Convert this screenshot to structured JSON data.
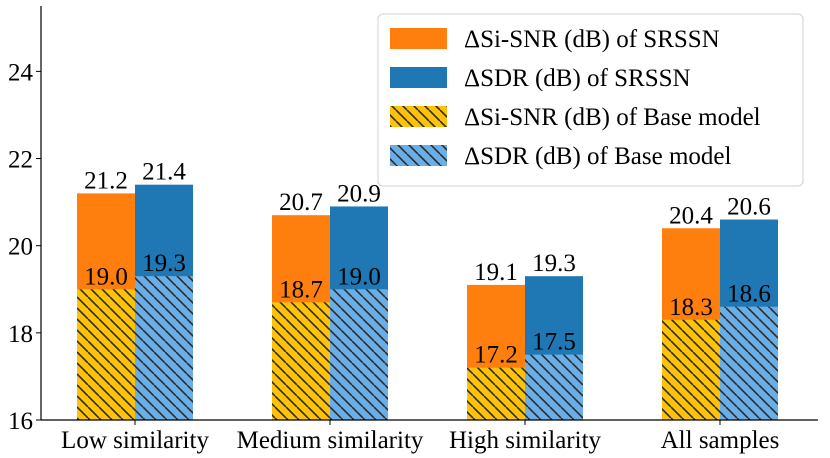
{
  "chart_data": {
    "type": "bar",
    "title": "",
    "xlabel": "",
    "ylabel": "",
    "ylim": [
      16,
      25.5
    ],
    "yticks": [
      "16",
      "18",
      "20",
      "22",
      "24"
    ],
    "categories": [
      "Low similarity",
      "Medium similarity",
      "High similarity",
      "All samples"
    ],
    "series": [
      {
        "name": "ΔSi-SNR (dB) of SRSSN",
        "values": [
          21.2,
          20.7,
          19.1,
          20.4
        ],
        "labels": [
          "21.2",
          "20.7",
          "19.1",
          "20.4"
        ]
      },
      {
        "name": "ΔSDR (dB) of SRSSN",
        "values": [
          21.4,
          20.9,
          19.3,
          20.6
        ],
        "labels": [
          "21.4",
          "20.9",
          "19.3",
          "20.6"
        ]
      },
      {
        "name": "ΔSi-SNR (dB) of Base model",
        "values": [
          19.0,
          18.7,
          17.2,
          18.3
        ],
        "labels": [
          "19.0",
          "18.7",
          "17.2",
          "18.3"
        ]
      },
      {
        "name": "ΔSDR (dB) of Base model",
        "values": [
          19.3,
          19.0,
          17.5,
          18.6
        ],
        "labels": [
          "19.3",
          "19.0",
          "17.5",
          "18.6"
        ]
      }
    ],
    "legend_position": "top-right",
    "grid": false
  },
  "colors": {
    "srssn_sisnr": "#ff7f0e",
    "srssn_sdr": "#1f77b4",
    "base_sisnr": "#ffc20a",
    "base_sdr": "#6aaee8",
    "hatch": "#333333",
    "axis": "#000000"
  }
}
